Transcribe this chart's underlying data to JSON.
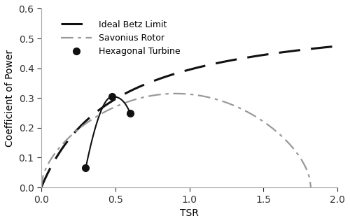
{
  "title": "",
  "xlabel": "TSR",
  "ylabel": "Coefficient of Power",
  "xlim": [
    0,
    2
  ],
  "ylim": [
    0,
    0.6
  ],
  "xticks": [
    0,
    0.5,
    1,
    1.5,
    2
  ],
  "yticks": [
    0,
    0.1,
    0.2,
    0.3,
    0.4,
    0.5,
    0.6
  ],
  "betz_color": "#111111",
  "savonius_color": "#999999",
  "hexagonal_color": "#111111",
  "legend_labels": [
    "Ideal Betz Limit",
    "Savonius Rotor",
    "Hexagonal Turbine"
  ],
  "hexagonal_points": [
    [
      0.3,
      0.065
    ],
    [
      0.48,
      0.305
    ],
    [
      0.6,
      0.25
    ]
  ],
  "betz_params": {
    "scale": 0.593,
    "shape": 0.5
  },
  "savonius_params": {
    "amplitude": 0.315,
    "tsr_max": 1.82
  }
}
